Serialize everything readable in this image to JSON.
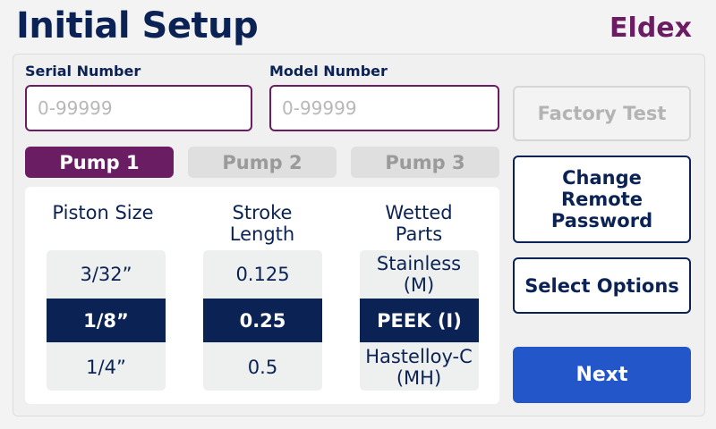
{
  "header": {
    "title": "Initial Setup",
    "brand": "Eldex"
  },
  "fields": {
    "serial": {
      "label": "Serial Number",
      "placeholder": "0-99999",
      "value": ""
    },
    "model": {
      "label": "Model Number",
      "placeholder": "0-99999",
      "value": ""
    }
  },
  "pump_tabs": [
    {
      "label": "Pump 1",
      "active": true
    },
    {
      "label": "Pump 2",
      "active": false
    },
    {
      "label": "Pump 3",
      "active": false
    }
  ],
  "columns": [
    {
      "header": "Piston Size",
      "options": [
        "3/32”",
        "1/8”",
        "1/4”"
      ],
      "selected": 1
    },
    {
      "header": "Stroke Length",
      "options": [
        "0.125",
        "0.25",
        "0.5"
      ],
      "selected": 1
    },
    {
      "header": "Wetted Parts",
      "options": [
        "Stainless (M)",
        "PEEK (I)",
        "Hastelloy-C (MH)"
      ],
      "selected": 1
    }
  ],
  "buttons": {
    "factory_test": "Factory Test",
    "change_password": "Change Remote Password",
    "select_options": "Select Options",
    "next": "Next"
  },
  "colors": {
    "brand": "#6b1d63",
    "navy": "#0b2254",
    "next": "#2356c9"
  }
}
